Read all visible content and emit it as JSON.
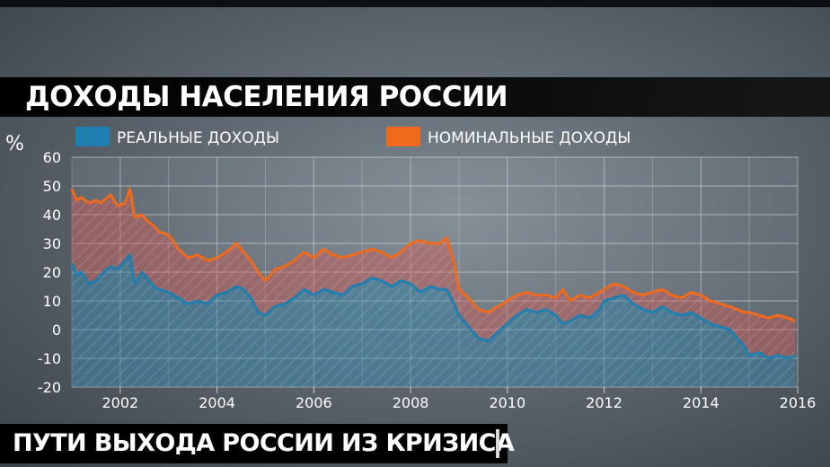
{
  "title": "ДОХОДЫ НАСЕЛЕНИЯ РОССИИ",
  "caption": "ПУТИ ВЫХОДА РОССИИ ИЗ КРИЗИСА",
  "colors": {
    "real": "#1e7fb0",
    "nominal": "#f06a1c",
    "title_bg": "#000000"
  },
  "chart_data": {
    "type": "area",
    "unit_label": "%",
    "ylim": [
      -20,
      60
    ],
    "yticks": [
      -20,
      -10,
      0,
      10,
      20,
      30,
      40,
      50,
      60
    ],
    "yticks_labels": [
      "-20",
      "-10",
      "0",
      "10",
      "20",
      "30",
      "40",
      "50",
      "60"
    ],
    "xlim": [
      2001.0,
      2016.0
    ],
    "xticks": [
      2002,
      2004,
      2006,
      2008,
      2010,
      2012,
      2014,
      2016
    ],
    "xticks_labels": [
      "2002",
      "2004",
      "2006",
      "2008",
      "2010",
      "2012",
      "2014",
      "2016"
    ],
    "grid": true,
    "legend_position": "top",
    "series": [
      {
        "name": "РЕАЛЬНЫЕ ДОХОДЫ",
        "color": "#1e7fb0",
        "x": [
          2001.0,
          2001.1,
          2001.2,
          2001.35,
          2001.5,
          2001.6,
          2001.8,
          2001.95,
          2002.1,
          2002.2,
          2002.3,
          2002.45,
          2002.55,
          2002.7,
          2002.8,
          2003.0,
          2003.2,
          2003.4,
          2003.6,
          2003.8,
          2004.0,
          2004.2,
          2004.4,
          2004.55,
          2004.7,
          2004.85,
          2005.0,
          2005.2,
          2005.4,
          2005.6,
          2005.8,
          2006.0,
          2006.2,
          2006.4,
          2006.6,
          2006.8,
          2007.0,
          2007.2,
          2007.4,
          2007.6,
          2007.8,
          2008.0,
          2008.2,
          2008.4,
          2008.6,
          2008.75,
          2008.9,
          2009.0,
          2009.2,
          2009.4,
          2009.6,
          2009.8,
          2010.0,
          2010.2,
          2010.4,
          2010.6,
          2010.8,
          2011.0,
          2011.15,
          2011.3,
          2011.5,
          2011.7,
          2011.9,
          2012.0,
          2012.2,
          2012.4,
          2012.6,
          2012.8,
          2013.0,
          2013.2,
          2013.4,
          2013.6,
          2013.8,
          2014.0,
          2014.2,
          2014.4,
          2014.6,
          2014.75,
          2014.9,
          2015.0,
          2015.2,
          2015.4,
          2015.6,
          2015.8,
          2015.95
        ],
        "values": [
          23,
          19,
          20,
          16,
          17,
          19,
          22,
          21,
          24,
          26,
          16,
          20,
          18,
          15,
          14,
          13,
          11,
          9,
          10,
          9,
          12,
          13,
          15,
          14,
          11,
          6,
          5,
          8,
          9,
          11,
          14,
          12,
          14,
          13,
          12,
          15,
          16,
          18,
          17,
          15,
          17,
          16,
          13,
          15,
          14,
          14,
          9,
          5,
          1,
          -3,
          -4,
          -1,
          2,
          5,
          7,
          6,
          7,
          5,
          2,
          3,
          5,
          4,
          7,
          10,
          11,
          12,
          9,
          7,
          6,
          8,
          6,
          5,
          6,
          4,
          2,
          1,
          0,
          -3,
          -6,
          -9,
          -8,
          -10,
          -9,
          -10,
          -9
        ]
      },
      {
        "name": "НОМИНАЛЬНЫЕ ДОХОДЫ",
        "color": "#f06a1c",
        "x": [
          2001.0,
          2001.1,
          2001.2,
          2001.35,
          2001.5,
          2001.6,
          2001.8,
          2001.95,
          2002.1,
          2002.2,
          2002.3,
          2002.45,
          2002.55,
          2002.7,
          2002.8,
          2003.0,
          2003.2,
          2003.4,
          2003.6,
          2003.8,
          2004.0,
          2004.2,
          2004.4,
          2004.55,
          2004.7,
          2004.85,
          2005.0,
          2005.2,
          2005.4,
          2005.6,
          2005.8,
          2006.0,
          2006.2,
          2006.4,
          2006.6,
          2006.8,
          2007.0,
          2007.2,
          2007.4,
          2007.6,
          2007.8,
          2008.0,
          2008.2,
          2008.4,
          2008.6,
          2008.75,
          2008.9,
          2009.0,
          2009.2,
          2009.4,
          2009.6,
          2009.8,
          2010.0,
          2010.2,
          2010.4,
          2010.6,
          2010.8,
          2011.0,
          2011.15,
          2011.3,
          2011.5,
          2011.7,
          2011.9,
          2012.0,
          2012.2,
          2012.4,
          2012.6,
          2012.8,
          2013.0,
          2013.2,
          2013.4,
          2013.6,
          2013.8,
          2014.0,
          2014.2,
          2014.4,
          2014.6,
          2014.75,
          2014.9,
          2015.0,
          2015.2,
          2015.4,
          2015.6,
          2015.8,
          2015.95
        ],
        "values": [
          49,
          45,
          46,
          44,
          45,
          44,
          47,
          43,
          44,
          49,
          39,
          40,
          38,
          36,
          34,
          33,
          28,
          25,
          26,
          24,
          25,
          27,
          30,
          27,
          24,
          20,
          17,
          21,
          22,
          24,
          27,
          25,
          28,
          26,
          25,
          26,
          27,
          28,
          27,
          25,
          27,
          30,
          31,
          30,
          30,
          32,
          23,
          14,
          11,
          7,
          6,
          8,
          10,
          12,
          13,
          12,
          12,
          11,
          14,
          10,
          12,
          11,
          13,
          14,
          16,
          15,
          13,
          12,
          13,
          14,
          12,
          11,
          13,
          12,
          10,
          9,
          8,
          7,
          6,
          6,
          5,
          4,
          5,
          4,
          3
        ]
      }
    ]
  }
}
